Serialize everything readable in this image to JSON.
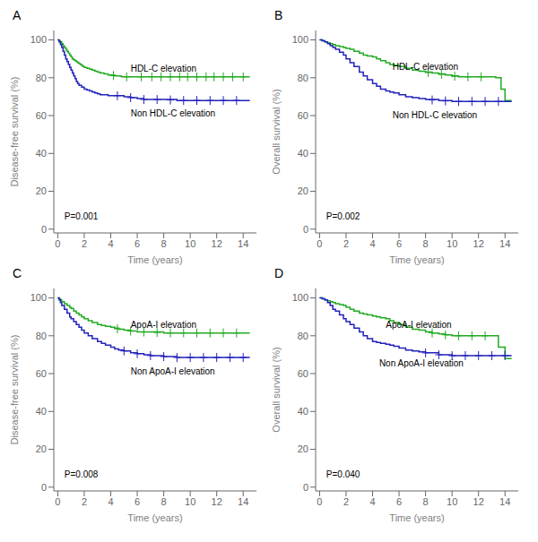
{
  "chart_data": [
    {
      "type": "step",
      "title": "A",
      "xlabel": "Time (years)",
      "ylabel": "Disease-free survival (%)",
      "grid": false,
      "xlim": [
        -0.3,
        15
      ],
      "ylim": [
        -2,
        105
      ],
      "xticks": [
        0,
        2,
        4,
        6,
        8,
        10,
        12,
        14
      ],
      "yticks": [
        0,
        20,
        40,
        60,
        80,
        100
      ],
      "series": [
        {
          "color": "#22aa22",
          "x": [
            0,
            0.1,
            0.2,
            0.3,
            0.4,
            0.5,
            0.6,
            0.7,
            0.8,
            0.9,
            1.0,
            1.1,
            1.2,
            1.3,
            1.4,
            1.5,
            1.6,
            1.7,
            1.8,
            1.9,
            2.0,
            2.2,
            2.4,
            2.6,
            2.8,
            3.0,
            3.2,
            3.5,
            3.8,
            4.0,
            4.3,
            4.5,
            4.8,
            5.0,
            5.5,
            6.0,
            7.0,
            8.0,
            9.0,
            10.0,
            11.0,
            12.0,
            13.0,
            14.0,
            14.5
          ],
          "values": [
            100,
            99.5,
            99,
            98,
            97,
            96,
            95,
            94,
            93,
            92,
            91,
            90,
            89.5,
            89,
            88.5,
            88,
            87.5,
            87,
            86.5,
            86,
            85.5,
            85,
            84.5,
            84,
            83.5,
            83,
            82.5,
            82,
            81.5,
            81.5,
            81,
            81,
            80.5,
            80.5,
            80.5,
            80.5,
            80.5,
            80.5,
            80.5,
            80.5,
            80.5,
            80.5,
            80.5,
            80.5,
            80.5
          ]
        },
        {
          "color": "#2222bb",
          "x": [
            0,
            0.1,
            0.2,
            0.3,
            0.4,
            0.5,
            0.6,
            0.7,
            0.8,
            0.9,
            1.0,
            1.1,
            1.2,
            1.3,
            1.4,
            1.5,
            1.6,
            1.8,
            2.0,
            2.2,
            2.4,
            2.6,
            2.8,
            3.0,
            3.2,
            3.5,
            3.8,
            4.0,
            4.3,
            4.5,
            5.0,
            5.5,
            6.0,
            6.5,
            7.0,
            7.5,
            8.0,
            9.0,
            10.0,
            11.0,
            12.0,
            13.0,
            14.0,
            14.5
          ],
          "values": [
            100,
            99,
            97.5,
            96,
            94,
            92,
            90,
            88.5,
            87,
            85.5,
            84,
            82.5,
            81,
            79.5,
            78,
            77,
            76,
            75,
            74,
            73.5,
            73,
            72.5,
            72,
            71.5,
            71,
            71,
            70.5,
            70.5,
            70.5,
            70.5,
            70,
            69.5,
            69,
            68.5,
            68.5,
            68.5,
            68.5,
            68,
            68,
            68,
            68,
            68,
            68,
            68
          ]
        },
        {
          "type": "scatter",
          "marker": "plus",
          "color": "#22aa22",
          "x": [
            4.2,
            5.2,
            6.3,
            7.1,
            7.8,
            8.5,
            9.2,
            9.8,
            10.5,
            11.2,
            11.8,
            12.5,
            13.2,
            14.0
          ],
          "values": [
            81.16666666666667,
            80.5,
            80.5,
            80.5,
            80.5,
            80.5,
            80.5,
            80.5,
            80.5,
            80.5,
            80.5,
            80.5,
            80.5,
            80.5
          ]
        },
        {
          "type": "scatter",
          "marker": "plus",
          "color": "#2222bb",
          "x": [
            4.5,
            5.5,
            6.5,
            7.5,
            8.5,
            9.5,
            10.5,
            11.5,
            12.5,
            13.5
          ],
          "values": [
            70.5,
            69.5,
            68.5,
            68.5,
            68.25,
            68,
            68,
            68,
            68,
            68
          ]
        }
      ],
      "annotations": [
        {
          "text": "HDL-C elevation",
          "x": 5.5,
          "y": 83
        },
        {
          "text": "Non HDL-C elevation",
          "x": 5.5,
          "y": 63
        },
        {
          "text": "P=0.001",
          "x": 0.5,
          "y": 5
        }
      ]
    },
    {
      "type": "step",
      "title": "B",
      "xlabel": "Time (years)",
      "ylabel": "Overall survival (%)",
      "grid": false,
      "xlim": [
        -0.3,
        15
      ],
      "ylim": [
        -2,
        105
      ],
      "xticks": [
        0,
        2,
        4,
        6,
        8,
        10,
        12,
        14
      ],
      "yticks": [
        0,
        20,
        40,
        60,
        80,
        100
      ],
      "series": [
        {
          "color": "#22aa22",
          "x": [
            0,
            0.2,
            0.4,
            0.6,
            0.8,
            1.0,
            1.2,
            1.5,
            1.8,
            2.0,
            2.3,
            2.6,
            3.0,
            3.3,
            3.6,
            4.0,
            4.3,
            4.6,
            5.0,
            5.3,
            5.6,
            6.0,
            6.5,
            7.0,
            7.5,
            8.0,
            8.5,
            9.0,
            9.5,
            10.0,
            10.5,
            11.0,
            12.0,
            13.0,
            13.3,
            13.7,
            14.0,
            14.5
          ],
          "values": [
            100,
            99.5,
            99,
            98.5,
            98,
            97.5,
            97,
            96.5,
            96,
            95.5,
            95,
            94,
            93,
            92,
            91.5,
            91,
            90,
            89,
            88,
            87,
            86.5,
            86,
            85,
            84,
            83.5,
            83,
            82.5,
            82,
            81.5,
            81,
            80.5,
            80.5,
            80.5,
            80.5,
            80,
            74,
            68,
            68
          ]
        },
        {
          "color": "#2222bb",
          "x": [
            0,
            0.2,
            0.4,
            0.6,
            0.8,
            1.0,
            1.2,
            1.5,
            1.8,
            2.0,
            2.3,
            2.6,
            3.0,
            3.3,
            3.6,
            4.0,
            4.3,
            4.6,
            5.0,
            5.3,
            5.6,
            6.0,
            6.5,
            7.0,
            7.5,
            8.0,
            9.0,
            10.0,
            11.0,
            12.0,
            13.0,
            14.0,
            14.5
          ],
          "values": [
            100,
            99.5,
            99,
            98,
            97,
            96,
            95,
            93.5,
            92,
            90,
            88,
            86,
            83,
            81,
            79,
            77,
            75.5,
            74,
            73,
            72.5,
            72,
            71,
            70,
            69.5,
            69,
            68.5,
            68,
            67.5,
            67.5,
            67.5,
            67.5,
            67.5,
            67.5
          ]
        },
        {
          "type": "scatter",
          "marker": "plus",
          "color": "#22aa22",
          "x": [
            8.2,
            9.2,
            10.2,
            11.2,
            12.2
          ],
          "values": [
            82.8,
            81.8,
            80.8,
            80.5,
            80.5
          ]
        },
        {
          "type": "scatter",
          "marker": "plus",
          "color": "#2222bb",
          "x": [
            8.5,
            9.5,
            10.5,
            11.5,
            12.5,
            13.5
          ],
          "values": [
            68.25,
            67.75,
            67.5,
            67.5,
            67.5,
            67.5
          ]
        }
      ],
      "annotations": [
        {
          "text": "HDL-C elevation",
          "x": 5.5,
          "y": 84
        },
        {
          "text": "Non HDL-C elevation",
          "x": 5.5,
          "y": 62
        },
        {
          "text": "P=0.002",
          "x": 0.5,
          "y": 5
        }
      ]
    },
    {
      "type": "step",
      "title": "C",
      "xlabel": "Time (years)",
      "ylabel": "Disease-free survival (%)",
      "grid": false,
      "xlim": [
        -0.3,
        15
      ],
      "ylim": [
        -2,
        105
      ],
      "xticks": [
        0,
        2,
        4,
        6,
        8,
        10,
        12,
        14
      ],
      "yticks": [
        0,
        20,
        40,
        60,
        80,
        100
      ],
      "series": [
        {
          "color": "#22aa22",
          "x": [
            0,
            0.1,
            0.2,
            0.3,
            0.5,
            0.7,
            0.9,
            1.0,
            1.2,
            1.4,
            1.6,
            1.8,
            2.0,
            2.3,
            2.6,
            3.0,
            3.3,
            3.6,
            4.0,
            4.3,
            4.6,
            5.0,
            5.5,
            6.0,
            7.0,
            8.0,
            9.0,
            10.0,
            11.0,
            12.0,
            13.0,
            14.0,
            14.5
          ],
          "values": [
            100,
            99.5,
            99,
            98,
            97,
            96,
            95,
            94.5,
            93,
            92,
            91,
            90,
            89,
            88,
            87,
            86,
            85.5,
            85,
            84.5,
            84,
            83.5,
            83,
            82.5,
            82,
            82,
            81.5,
            81.5,
            81.5,
            81.5,
            81.5,
            81.5,
            81.5,
            81.5
          ]
        },
        {
          "color": "#2222bb",
          "x": [
            0,
            0.1,
            0.2,
            0.3,
            0.5,
            0.7,
            0.9,
            1.0,
            1.2,
            1.4,
            1.6,
            1.8,
            2.0,
            2.3,
            2.6,
            3.0,
            3.3,
            3.6,
            4.0,
            4.3,
            4.6,
            5.0,
            5.5,
            6.0,
            6.5,
            7.0,
            7.5,
            8.0,
            9.0,
            10.0,
            11.0,
            12.0,
            13.0,
            14.0,
            14.5
          ],
          "values": [
            100,
            99,
            97.5,
            96,
            94,
            92,
            90,
            89,
            87.5,
            86,
            84.5,
            83,
            81.5,
            80,
            78.5,
            77,
            76,
            75,
            74,
            73,
            72.5,
            72,
            71,
            70.5,
            70,
            69.5,
            69.5,
            69,
            68.5,
            68.5,
            68.5,
            68.5,
            68.5,
            68.5,
            68.5
          ]
        },
        {
          "type": "scatter",
          "marker": "plus",
          "color": "#22aa22",
          "x": [
            4.5,
            5.5,
            6.5,
            7.5,
            8.5,
            9.5,
            10.5,
            11.5,
            12.5,
            13.5
          ],
          "values": [
            83.66666666666667,
            82.5,
            82,
            81.75,
            81.5,
            81.5,
            81.5,
            81.5,
            81.5,
            81.5
          ]
        },
        {
          "type": "scatter",
          "marker": "plus",
          "color": "#2222bb",
          "x": [
            5.0,
            6.0,
            7.0,
            8.0,
            9.0,
            10.0,
            11.0,
            12.0,
            13.0,
            14.0
          ],
          "values": [
            72,
            70.5,
            69.5,
            69,
            68.5,
            68.5,
            68.5,
            68.5,
            68.5,
            68.5
          ]
        }
      ],
      "annotations": [
        {
          "text": "ApoA-I  elevation",
          "x": 5.5,
          "y": 84
        },
        {
          "text": "Non ApoA-I  elevation",
          "x": 5.5,
          "y": 63
        },
        {
          "text": "P=0.008",
          "x": 0.5,
          "y": 5
        }
      ]
    },
    {
      "type": "step",
      "title": "D",
      "xlabel": "Time (years)",
      "ylabel": "Overall survival (%)",
      "grid": false,
      "xlim": [
        -0.3,
        15
      ],
      "ylim": [
        -2,
        105
      ],
      "xticks": [
        0,
        2,
        4,
        6,
        8,
        10,
        12,
        14
      ],
      "yticks": [
        0,
        20,
        40,
        60,
        80,
        100
      ],
      "series": [
        {
          "color": "#22aa22",
          "x": [
            0,
            0.2,
            0.4,
            0.6,
            0.8,
            1.0,
            1.2,
            1.5,
            1.8,
            2.0,
            2.3,
            2.6,
            3.0,
            3.3,
            3.6,
            4.0,
            4.3,
            4.6,
            5.0,
            5.3,
            5.6,
            6.0,
            6.5,
            7.0,
            7.5,
            8.0,
            8.5,
            9.0,
            9.5,
            10.0,
            11.0,
            12.0,
            13.0,
            13.5,
            14.0,
            14.5
          ],
          "values": [
            100,
            99.5,
            99,
            98.5,
            98,
            97.5,
            97,
            96.5,
            96,
            95,
            94,
            93,
            92,
            91.5,
            91,
            90.5,
            90,
            89.5,
            89,
            88,
            87,
            86,
            84.5,
            83.5,
            83,
            82,
            81.5,
            81,
            80.5,
            80,
            80,
            80,
            80,
            74,
            68,
            68
          ]
        },
        {
          "color": "#2222bb",
          "x": [
            0,
            0.2,
            0.4,
            0.6,
            0.8,
            1.0,
            1.2,
            1.5,
            1.8,
            2.0,
            2.3,
            2.6,
            3.0,
            3.3,
            3.6,
            4.0,
            4.3,
            4.6,
            5.0,
            5.3,
            5.6,
            6.0,
            6.5,
            7.0,
            7.5,
            8.0,
            9.0,
            10.0,
            11.0,
            12.0,
            13.0,
            14.0,
            14.5
          ],
          "values": [
            100,
            99.5,
            99,
            97.5,
            96,
            94,
            93,
            91,
            89,
            87.5,
            86,
            84,
            82,
            80,
            78.5,
            77,
            76.5,
            76,
            75.5,
            75,
            74.5,
            73.5,
            72.5,
            72,
            71.5,
            71,
            70,
            69.5,
            69.5,
            69.5,
            69.5,
            69.5,
            69.5
          ]
        },
        {
          "type": "scatter",
          "marker": "plus",
          "color": "#22aa22",
          "x": [
            8.5,
            9.5,
            10.5,
            11.5,
            12.5
          ],
          "values": [
            81.5,
            80.5,
            80,
            80,
            80
          ]
        },
        {
          "type": "scatter",
          "marker": "plus",
          "color": "#2222bb",
          "x": [
            8.0,
            9.0,
            10.0,
            11.0,
            12.0,
            13.0,
            14.0
          ],
          "values": [
            71,
            70,
            69.5,
            69.5,
            69.5,
            69.5,
            69.5
          ]
        }
      ],
      "annotations": [
        {
          "text": "ApoA-I  elevation",
          "x": 5.0,
          "y": 84
        },
        {
          "text": "Non ApoA-I  elevation",
          "x": 4.5,
          "y": 67
        },
        {
          "text": "P=0.040",
          "x": 0.5,
          "y": 5
        }
      ]
    }
  ]
}
